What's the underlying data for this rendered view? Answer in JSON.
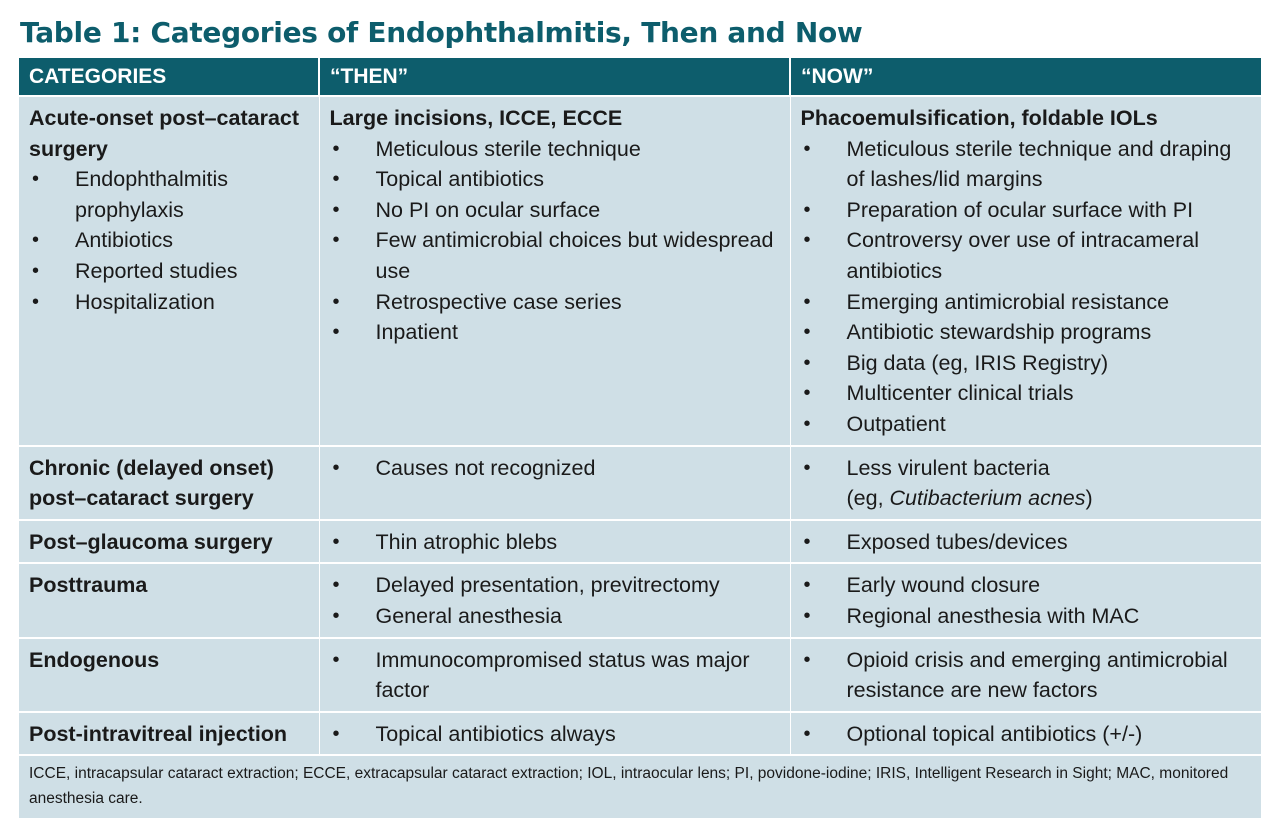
{
  "title": "Table 1: Categories of Endophthalmitis, Then and Now",
  "headers": [
    "CATEGORIES",
    "“THEN”",
    "“NOW”"
  ],
  "rows": [
    {
      "category": "Acute-onset post–cataract surgery",
      "category_items": [
        "Endophthalmitis prophylaxis",
        "Antibiotics",
        "Reported studies",
        "Hospitalization"
      ],
      "then_heading": "Large incisions, ICCE, ECCE",
      "then": [
        "Meticulous sterile technique",
        "Topical antibiotics",
        "No PI on ocular surface",
        "Few antimicrobial choices but widespread use",
        "Retrospective case series",
        "Inpatient"
      ],
      "now_heading": "Phacoemulsification, foldable IOLs",
      "now": [
        "Meticulous sterile technique and draping of lashes/lid margins",
        "Preparation of ocular surface with PI",
        "Controversy over use of intracameral antibiotics",
        "Emerging antimicrobial resistance",
        "Antibiotic stewardship programs",
        "Big data (eg, IRIS Registry)",
        "Multicenter clinical trials",
        "Outpatient"
      ]
    },
    {
      "category": "Chronic (delayed onset) post–cataract surgery",
      "then": [
        "Causes not recognized"
      ],
      "now_rich": {
        "line1": "Less virulent bacteria",
        "prefix": "(eg, ",
        "italic": "Cutibacterium acnes",
        "suffix": ")"
      }
    },
    {
      "category": "Post–glaucoma surgery",
      "then": [
        "Thin atrophic blebs"
      ],
      "now": [
        "Exposed tubes/devices"
      ]
    },
    {
      "category": "Posttrauma",
      "then": [
        "Delayed presentation, previtrectomy",
        "General anesthesia"
      ],
      "now": [
        "Early wound closure",
        "Regional anesthesia with MAC"
      ]
    },
    {
      "category": "Endogenous",
      "then": [
        "Immunocompromised status was major factor"
      ],
      "now": [
        "Opioid crisis and emerging antimicrobial resistance are new factors"
      ]
    },
    {
      "category": "Post-intravitreal injection",
      "then": [
        "Topical antibiotics always"
      ],
      "now": [
        "Optional topical antibiotics (+/-)"
      ]
    }
  ],
  "footnote": "ICCE, intracapsular cataract extraction; ECCE, extracapsular cataract extraction; IOL, intraocular lens; PI, povidone-iodine; IRIS, Intelligent Research in Sight; MAC, monitored anesthesia care.",
  "colors": {
    "title": "#0d5d6c",
    "header_bg": "#0d5d6c",
    "cell_bg": "#cfdfe6",
    "border": "#ffffff"
  }
}
